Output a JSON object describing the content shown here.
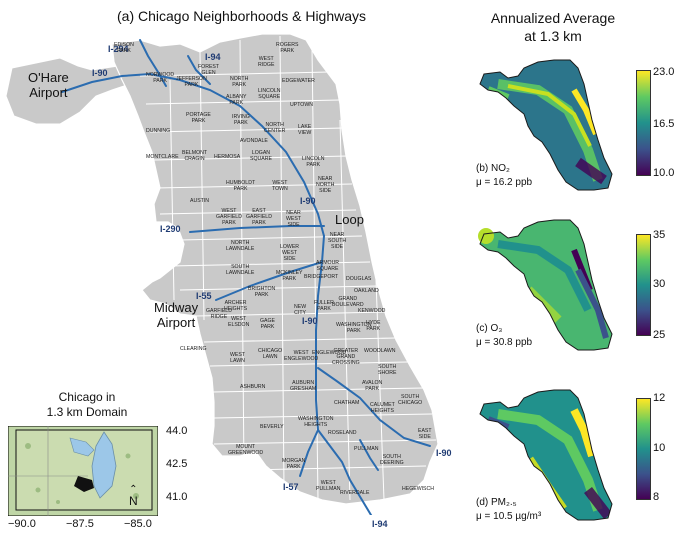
{
  "titles": {
    "left": "(a) Chicago Neighborhoods & Highways",
    "right_line1": "Annualized Average",
    "right_line2": "at 1.3 km"
  },
  "places": {
    "ohare": [
      "O'Hare",
      "Airport"
    ],
    "midway": [
      "Midway",
      "Airport"
    ],
    "loop": "Loop"
  },
  "highways": {
    "i294": "I-294",
    "i94_n": "I-94",
    "i90_w": "I-90",
    "i90_c": "I-90",
    "i290": "I-290",
    "i55": "I-55",
    "i90_s": "I-90",
    "i90_se": "I-90",
    "i57": "I-57",
    "i94_s": "I-94"
  },
  "neighborhoods": [
    [
      "EDISON",
      "PARK"
    ],
    [
      "ROGERS",
      "PARK"
    ],
    [
      "WEST",
      "RIDGE"
    ],
    [
      "FOREST",
      "GLEN"
    ],
    [
      "NORWOOD",
      "PARK"
    ],
    [
      "JEFFERSON",
      "PARK"
    ],
    [
      "NORTH",
      "PARK"
    ],
    [
      "EDGEWATER"
    ],
    [
      "ALBANY",
      "PARK"
    ],
    [
      "LINCOLN",
      "SQUARE"
    ],
    [
      "UPTOWN"
    ],
    [
      "PORTAGE",
      "PARK"
    ],
    [
      "IRVING",
      "PARK"
    ],
    [
      "NORTH",
      "CENTER"
    ],
    [
      "LAKE",
      "VIEW"
    ],
    [
      "DUNNING"
    ],
    [
      "AVONDALE"
    ],
    [
      "BELMONT",
      "CRAGIN"
    ],
    [
      "HERMOSA"
    ],
    [
      "LOGAN",
      "SQUARE"
    ],
    [
      "MONTCLARE"
    ],
    [
      "LINCOLN",
      "PARK"
    ],
    [
      "HUMBOLDT",
      "PARK"
    ],
    [
      "WEST",
      "TOWN"
    ],
    [
      "NEAR",
      "NORTH",
      "SIDE"
    ],
    [
      "AUSTIN"
    ],
    [
      "WEST",
      "GARFIELD",
      "PARK"
    ],
    [
      "EAST",
      "GARFIELD",
      "PARK"
    ],
    [
      "NEAR",
      "WEST",
      "SIDE"
    ],
    [
      "NEAR",
      "SOUTH",
      "SIDE"
    ],
    [
      "NORTH",
      "LAWNDALE"
    ],
    [
      "LOWER",
      "WEST",
      "SIDE"
    ],
    [
      "SOUTH",
      "LAWNDALE"
    ],
    [
      "ARMOUR",
      "SQUARE"
    ],
    [
      "MCKINLEY",
      "PARK"
    ],
    [
      "BRIDGEPORT"
    ],
    [
      "DOUGLAS"
    ],
    [
      "BRIGHTON",
      "PARK"
    ],
    [
      "OAKLAND"
    ],
    [
      "ARCHER",
      "HEIGHTS"
    ],
    [
      "FULLER",
      "PARK"
    ],
    [
      "GRAND",
      "BOULEVARD"
    ],
    [
      "KENWOOD"
    ],
    [
      "GARFIELD",
      "RIDGE"
    ],
    [
      "WEST",
      "ELSDON"
    ],
    [
      "GAGE",
      "PARK"
    ],
    [
      "NEW",
      "CITY"
    ],
    [
      "WASHINGTON",
      "PARK"
    ],
    [
      "HYDE",
      "PARK"
    ],
    [
      "CLEARING"
    ],
    [
      "WEST",
      "LAWN"
    ],
    [
      "CHICAGO",
      "LAWN"
    ],
    [
      "WEST",
      "ENGLEWOOD"
    ],
    [
      "ENGLEWOOD"
    ],
    [
      "GREATER",
      "GRAND",
      "CROSSING"
    ],
    [
      "WOODLAWN"
    ],
    [
      "SOUTH",
      "SHORE"
    ],
    [
      "ASHBURN"
    ],
    [
      "AUBURN",
      "GRESHAM"
    ],
    [
      "AVALON",
      "PARK"
    ],
    [
      "CHATHAM"
    ],
    [
      "SOUTH",
      "CHICAGO"
    ],
    [
      "CALUMET",
      "HEIGHTS"
    ],
    [
      "BEVERLY"
    ],
    [
      "WASHINGTON",
      "HEIGHTS"
    ],
    [
      "ROSELAND"
    ],
    [
      "EAST",
      "SIDE"
    ],
    [
      "MOUNT",
      "GREENWOOD"
    ],
    [
      "PULLMAN"
    ],
    [
      "MORGAN",
      "PARK"
    ],
    [
      "SOUTH",
      "DEERING"
    ],
    [
      "WEST",
      "PULLMAN"
    ],
    [
      "RIVERDALE"
    ],
    [
      "HEGEWISCH"
    ]
  ],
  "inset": {
    "title_line1": "Chicago in",
    "title_line2": "1.3 km Domain",
    "lat_ticks": [
      "44.0",
      "42.5",
      "41.0"
    ],
    "lon_ticks": [
      "−90.0",
      "−87.5",
      "−85.0"
    ],
    "north_arrow": "N"
  },
  "panels": [
    {
      "caption": "(b) NO₂",
      "mean": "μ = 16.2 ppb",
      "colorbar_ticks": [
        "23.0",
        "16.5",
        "10.0"
      ],
      "colorbar_range": [
        10.0,
        23.0
      ]
    },
    {
      "caption": "(c) O₃",
      "mean": "μ = 30.8 ppb",
      "colorbar_ticks": [
        "35",
        "30",
        "25"
      ],
      "colorbar_range": [
        25,
        35
      ]
    },
    {
      "caption": "(d) PM₂.₅",
      "mean": "μ = 10.5 µg/m³",
      "colorbar_ticks": [
        "12",
        "10",
        "8"
      ],
      "colorbar_range": [
        8,
        12
      ]
    }
  ],
  "colors": {
    "city_fill": "#c9c9c9",
    "highway": "#2b6cb0",
    "viridis": [
      "#440154",
      "#3b528b",
      "#21918c",
      "#5ec962",
      "#fde725"
    ]
  }
}
